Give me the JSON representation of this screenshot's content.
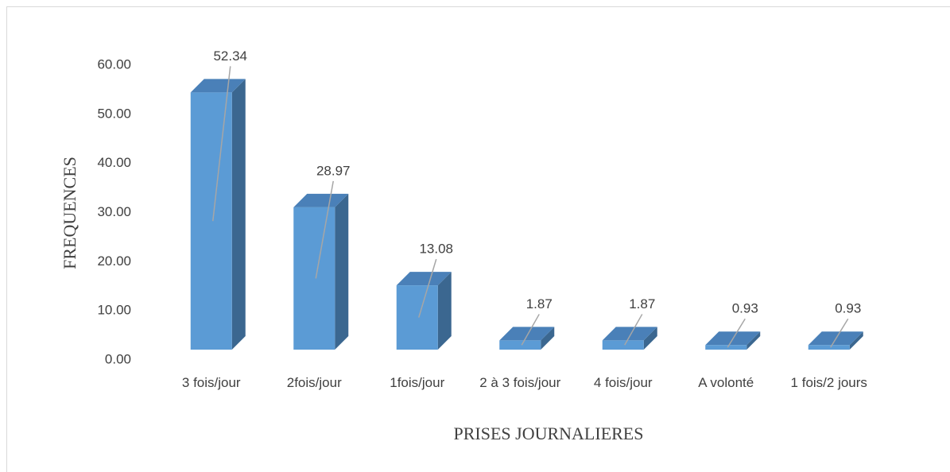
{
  "chart_data": {
    "type": "bar3d",
    "categories": [
      "3 fois/jour",
      "2fois/jour",
      "1fois/jour",
      "2 à 3 fois/jour",
      "4 fois/jour",
      "A volonté",
      "1 fois/2 jours"
    ],
    "values": [
      52.34,
      28.97,
      13.08,
      1.87,
      1.87,
      0.93,
      0.93
    ],
    "color": "#5b9bd5",
    "ylim": [
      0,
      60
    ],
    "yticks": [
      {
        "value": 0,
        "label": "0.00"
      },
      {
        "value": 10,
        "label": "10.00"
      },
      {
        "value": 20,
        "label": "20.00"
      },
      {
        "value": 30,
        "label": "30.00"
      },
      {
        "value": 40,
        "label": "40.00"
      },
      {
        "value": 50,
        "label": "50.00"
      },
      {
        "value": 60,
        "label": "60.00"
      }
    ],
    "y_label": "FREQUENCES",
    "x_label": "PRISES JOURNALIERES"
  }
}
